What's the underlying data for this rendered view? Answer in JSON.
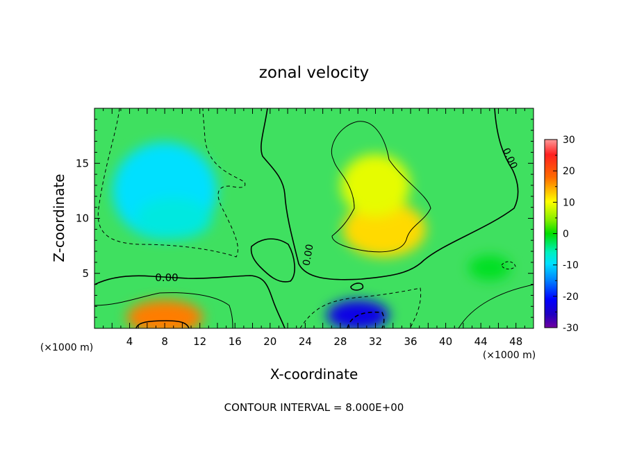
{
  "chart_data": {
    "type": "heatmap",
    "title": "zonal velocity",
    "xlabel": "X-coordinate",
    "ylabel": "Z-coordinate",
    "x_unit": "(×1000 m)",
    "y_unit": "",
    "xlim": [
      0,
      50
    ],
    "ylim": [
      0,
      20
    ],
    "x_ticks": [
      4,
      8,
      12,
      16,
      20,
      24,
      28,
      32,
      36,
      40,
      44,
      48
    ],
    "y_ticks": [
      5,
      10,
      15
    ],
    "colorbar": {
      "min": -30,
      "max": 30,
      "ticks": [
        30,
        20,
        10,
        0,
        -10,
        -20,
        -30
      ]
    },
    "contour_label": "0.00",
    "footnote": "CONTOUR INTERVAL = 8.000E+00",
    "features": [
      {
        "x": 8,
        "z": 12.5,
        "value": -10
      },
      {
        "x": 9,
        "z": 10,
        "value": -8
      },
      {
        "x": 30,
        "z": 1.2,
        "value": -22
      },
      {
        "x": 8,
        "z": 1,
        "value": 17
      },
      {
        "x": 33,
        "z": 9,
        "value": 12
      },
      {
        "x": 32,
        "z": 13,
        "value": 9
      },
      {
        "x": 45,
        "z": 5.5,
        "value": -1
      }
    ]
  }
}
